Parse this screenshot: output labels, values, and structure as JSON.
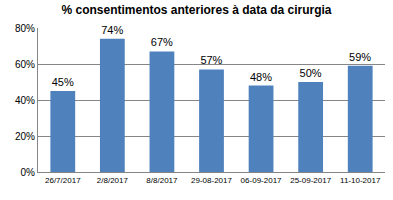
{
  "chart_data": {
    "type": "bar",
    "title": "% consentimentos anteriores à data da cirurgia",
    "categories": [
      "26/7/2017",
      "2/8/2017",
      "8/8/2017",
      "29-08-2017",
      "06-09-2017",
      "25-09-2017",
      "11-10-2017"
    ],
    "values": [
      45,
      74,
      67,
      57,
      48,
      50,
      59
    ],
    "value_labels": [
      "45%",
      "74%",
      "67%",
      "57%",
      "48%",
      "50%",
      "59%"
    ],
    "color": "#4f81bd",
    "ylim": [
      0,
      80
    ],
    "yticks": [
      {
        "value": 0,
        "label": "0%"
      },
      {
        "value": 20,
        "label": "20%"
      },
      {
        "value": 40,
        "label": "40%"
      },
      {
        "value": 60,
        "label": "60%"
      },
      {
        "value": 80,
        "label": "80%"
      }
    ],
    "grid": true,
    "data_labels": true
  }
}
